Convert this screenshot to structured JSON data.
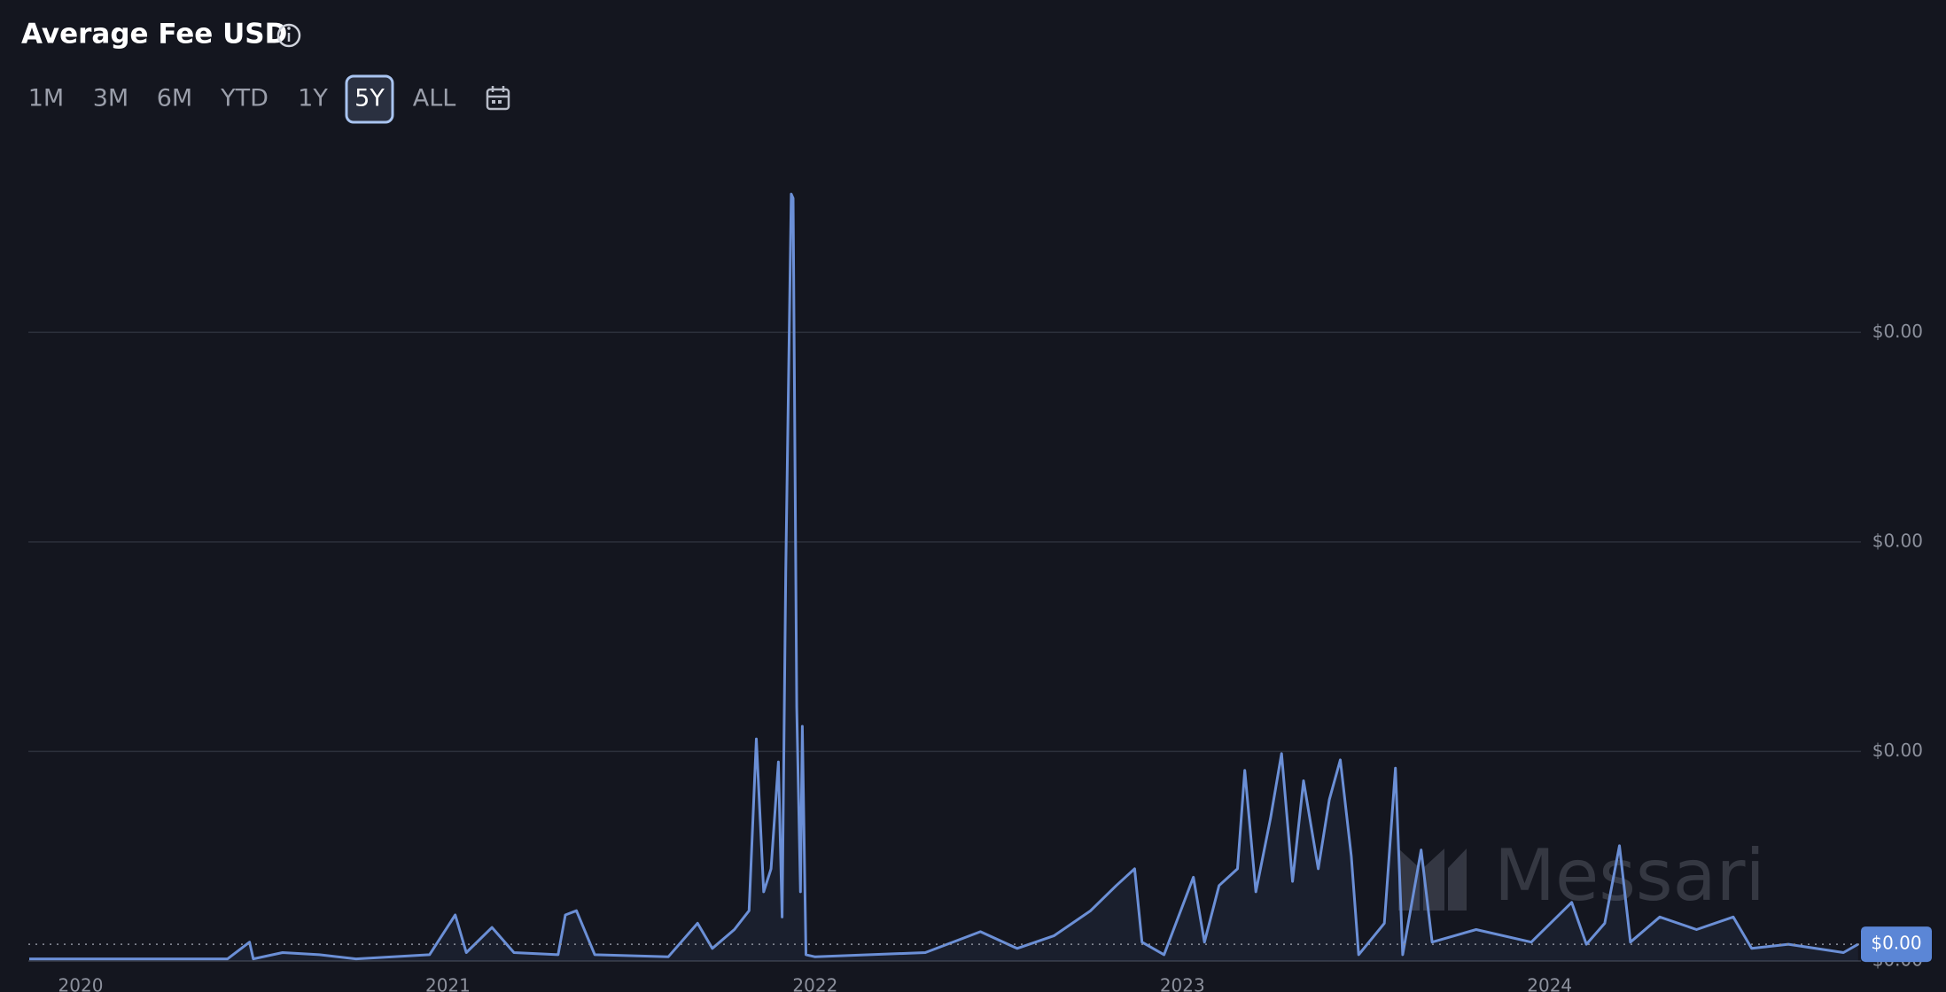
{
  "header": {
    "title": "Average Fee USD",
    "ranges": [
      "1M",
      "3M",
      "6M",
      "YTD",
      "1Y",
      "5Y",
      "ALL"
    ],
    "selected_range": 5
  },
  "chart_data": {
    "type": "line",
    "color": "#6b8fd6",
    "watermark": "Messari",
    "current_label": "$0.00",
    "x": [
      2019.86,
      2020.4,
      2020.46,
      2020.47,
      2020.55,
      2020.65,
      2020.75,
      2020.95,
      2021.02,
      2021.05,
      2021.12,
      2021.18,
      2021.3,
      2021.32,
      2021.35,
      2021.4,
      2021.6,
      2021.68,
      2021.72,
      2021.78,
      2021.82,
      2021.84,
      2021.86,
      2021.88,
      2021.9,
      2021.91,
      2021.92,
      2021.935,
      2021.94,
      2021.95,
      2021.96,
      2021.965,
      2021.975,
      2022.0,
      2022.3,
      2022.45,
      2022.55,
      2022.65,
      2022.75,
      2022.82,
      2022.87,
      2022.89,
      2022.95,
      2023.03,
      2023.06,
      2023.1,
      2023.15,
      2023.17,
      2023.2,
      2023.24,
      2023.27,
      2023.3,
      2023.33,
      2023.37,
      2023.4,
      2023.43,
      2023.46,
      2023.48,
      2023.55,
      2023.58,
      2023.6,
      2023.65,
      2023.68,
      2023.8,
      2023.95,
      2024.06,
      2024.1,
      2024.15,
      2024.19,
      2024.22,
      2024.3,
      2024.4,
      2024.5,
      2024.55,
      2024.65,
      2024.8,
      2024.84
    ],
    "values": [
      1e-05,
      1e-05,
      9e-05,
      1e-05,
      4e-05,
      3e-05,
      1e-05,
      3e-05,
      0.00022,
      4e-05,
      0.00016,
      4e-05,
      3e-05,
      0.00022,
      0.00024,
      3e-05,
      2e-05,
      0.00018,
      6e-05,
      0.00015,
      0.00024,
      0.00106,
      0.00033,
      0.00044,
      0.00095,
      0.00021,
      0.00186,
      0.00366,
      0.00364,
      0.00121,
      0.00033,
      0.00112,
      3e-05,
      2e-05,
      4e-05,
      0.00014,
      6e-05,
      0.00012,
      0.00024,
      0.00036,
      0.00044,
      9e-05,
      3e-05,
      0.0004,
      9e-05,
      0.00036,
      0.00044,
      0.00091,
      0.00033,
      0.00068,
      0.00099,
      0.00038,
      0.00086,
      0.00044,
      0.00077,
      0.00096,
      0.0005,
      3e-05,
      0.00018,
      0.00092,
      3e-05,
      0.00053,
      9e-05,
      0.00015,
      9e-05,
      0.00028,
      8e-05,
      0.00018,
      0.00055,
      9e-05,
      0.00021,
      0.00015,
      0.00021,
      6e-05,
      8e-05,
      4e-05,
      8e-05
    ],
    "xlim": [
      2019.86,
      2024.85
    ],
    "xticks": [
      2020,
      2021,
      2022,
      2023,
      2024
    ],
    "ylim": [
      0,
      0.0038
    ],
    "yticks": [
      {
        "value": 0,
        "label": "$0.00"
      },
      {
        "value": 0.001,
        "label": "$0.00"
      },
      {
        "value": 0.002,
        "label": "$0.00"
      },
      {
        "value": 0.003,
        "label": "$0.00"
      }
    ],
    "grid": true
  }
}
